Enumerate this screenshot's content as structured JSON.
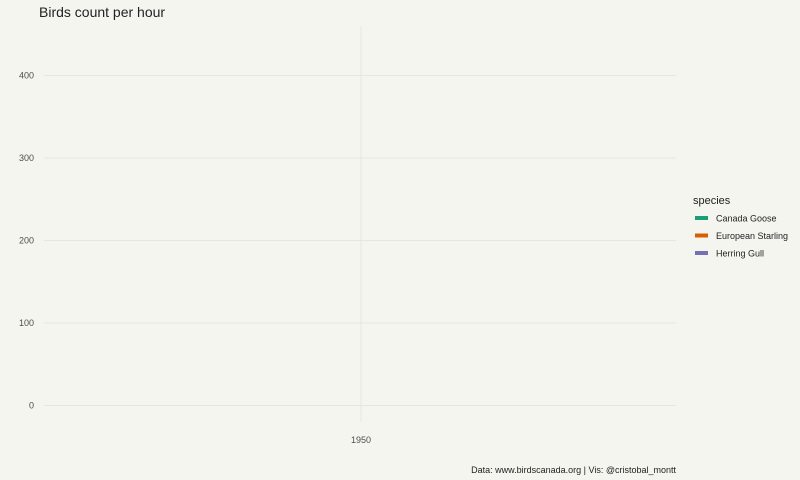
{
  "chart_data": {
    "type": "line",
    "title": "Birds count per hour",
    "xlabel": "",
    "ylabel": "",
    "x_ticks": [
      "1950"
    ],
    "y_ticks": [
      0,
      100,
      200,
      300,
      400
    ],
    "ylim": [
      -20,
      460
    ],
    "grid": true,
    "legend": {
      "title": "species",
      "position": "right"
    },
    "series": [
      {
        "name": "Canada Goose",
        "color": "#1b9e77",
        "values": []
      },
      {
        "name": "European Starling",
        "color": "#d95f02",
        "values": []
      },
      {
        "name": "Herring Gull",
        "color": "#7570b3",
        "values": []
      }
    ],
    "caption": "Data: www.birdscanada.org | Vis: @cristobal_montt"
  }
}
